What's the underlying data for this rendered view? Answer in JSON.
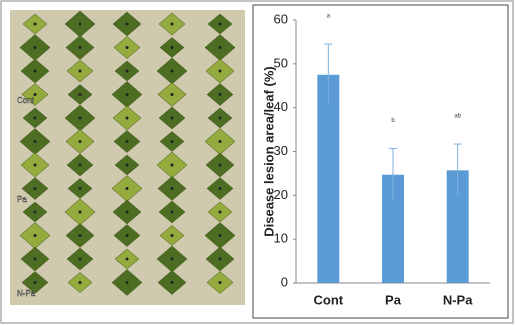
{
  "photo": {
    "labels": [
      "Cont",
      "Pa",
      "N-Pa"
    ]
  },
  "chart_data": {
    "type": "bar",
    "y_label": "Disease lesion area/leaf (%)",
    "categories": [
      "Cont",
      "Pa",
      "N-Pa"
    ],
    "values": [
      47.5,
      24.7,
      25.7
    ],
    "errors": [
      7,
      6,
      6
    ],
    "annotations": [
      "a",
      "b",
      "ab"
    ],
    "color": "#5b9bd5",
    "ylim": [
      0,
      60
    ],
    "yticks": [
      0,
      10,
      20,
      30,
      40,
      50,
      60
    ],
    "grid": false
  }
}
